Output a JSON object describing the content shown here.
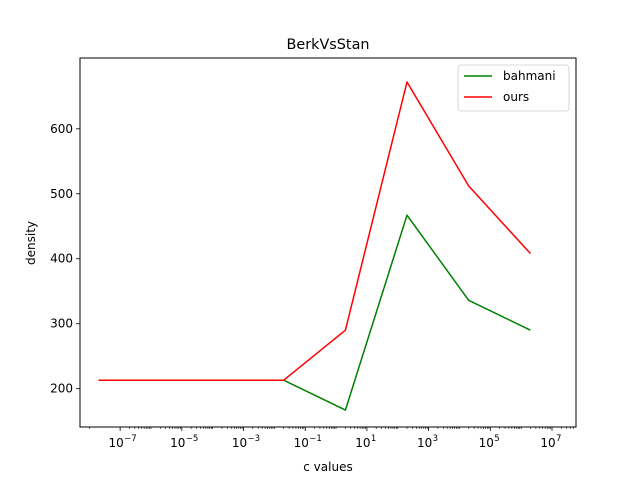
{
  "chart_data": {
    "type": "line",
    "title": "BerkVsStan",
    "xlabel": "c values",
    "ylabel": "density",
    "xscale": "log",
    "xlim": [
      5e-09,
      60000000.0
    ],
    "ylim": [
      141,
      709
    ],
    "xticks": [
      {
        "value": 1e-07,
        "base": "10",
        "exp": "−7"
      },
      {
        "value": 1e-05,
        "base": "10",
        "exp": "−5"
      },
      {
        "value": 0.001,
        "base": "10",
        "exp": "−3"
      },
      {
        "value": 0.1,
        "base": "10",
        "exp": "−1"
      },
      {
        "value": 10.0,
        "base": "10",
        "exp": "1"
      },
      {
        "value": 1000.0,
        "base": "10",
        "exp": "3"
      },
      {
        "value": 100000.0,
        "base": "10",
        "exp": "5"
      },
      {
        "value": 10000000.0,
        "base": "10",
        "exp": "7"
      }
    ],
    "yticks": [
      200,
      300,
      400,
      500,
      600
    ],
    "x": [
      2e-08,
      0.02,
      2,
      200,
      20000,
      2000000
    ],
    "series": [
      {
        "name": "bahmani",
        "color": "#008000",
        "values": [
          213,
          213,
          167,
          467,
          336,
          290
        ]
      },
      {
        "name": "ours",
        "color": "#ff0000",
        "values": [
          213,
          213,
          290,
          672,
          512,
          408
        ]
      }
    ],
    "legend": "top-right",
    "grid": false
  }
}
